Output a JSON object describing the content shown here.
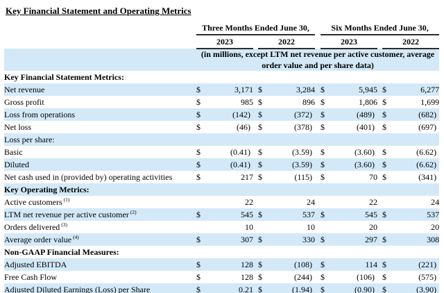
{
  "title": "Key Financial Statement and Operating Metrics",
  "currency_symbol": "$",
  "colors": {
    "row_highlight": "#d3e9f8",
    "header_rule": "#2b2b2b"
  },
  "table": {
    "period_groups": [
      {
        "label": "Three Months Ended June 30,",
        "years": [
          "2023",
          "2022"
        ]
      },
      {
        "label": "Six Months Ended June 30,",
        "years": [
          "2023",
          "2022"
        ]
      }
    ],
    "note": "(in millions, except LTM net revenue per active customer, average order value and per share data)",
    "rows": [
      {
        "type": "section",
        "label": "Key Financial Statement Metrics:",
        "shade": false
      },
      {
        "type": "data",
        "label": "Net revenue",
        "indent": 1,
        "dollar": true,
        "shade": true,
        "values": [
          "3,171",
          "3,284",
          "5,945",
          "6,277"
        ]
      },
      {
        "type": "data",
        "label": "Gross profit",
        "indent": 1,
        "dollar": true,
        "shade": false,
        "values": [
          "985",
          "896",
          "1,806",
          "1,699"
        ]
      },
      {
        "type": "data",
        "label": "Loss from operations",
        "indent": 1,
        "dollar": true,
        "shade": true,
        "values": [
          "(142)",
          "(372)",
          "(489)",
          "(682)"
        ]
      },
      {
        "type": "data",
        "label": "Net loss",
        "indent": 1,
        "dollar": true,
        "shade": false,
        "values": [
          "(46)",
          "(378)",
          "(401)",
          "(697)"
        ]
      },
      {
        "type": "plain",
        "label": "Loss per share:",
        "shade": true
      },
      {
        "type": "data",
        "label": "Basic",
        "indent": 2,
        "dollar": true,
        "shade": false,
        "values": [
          "(0.41)",
          "(3.59)",
          "(3.60)",
          "(6.62)"
        ]
      },
      {
        "type": "data",
        "label": "Diluted",
        "indent": 2,
        "dollar": true,
        "shade": true,
        "values": [
          "(0.41)",
          "(3.59)",
          "(3.60)",
          "(6.62)"
        ]
      },
      {
        "type": "data",
        "label": "Net cash used in (provided by) operating activities",
        "indent": 0,
        "dollar": true,
        "shade": false,
        "values": [
          "217",
          "(115)",
          "70",
          "(341)"
        ]
      },
      {
        "type": "section",
        "label": "Key Operating Metrics:",
        "shade": true
      },
      {
        "type": "data",
        "label": "Active customers",
        "footnote": "(1)",
        "indent": 1,
        "dollar": false,
        "shade": false,
        "values": [
          "22",
          "24",
          "22",
          "24"
        ]
      },
      {
        "type": "data",
        "label": "LTM net revenue per active customer",
        "footnote": "(2)",
        "indent": 1,
        "dollar": true,
        "shade": true,
        "values": [
          "545",
          "537",
          "545",
          "537"
        ]
      },
      {
        "type": "data",
        "label": "Orders delivered",
        "footnote": "(3)",
        "indent": 1,
        "dollar": false,
        "shade": false,
        "values": [
          "10",
          "10",
          "20",
          "20"
        ]
      },
      {
        "type": "data",
        "label": "Average order value",
        "footnote": "(4)",
        "indent": 1,
        "dollar": true,
        "shade": true,
        "values": [
          "307",
          "330",
          "297",
          "308"
        ]
      },
      {
        "type": "section",
        "label": "Non-GAAP Financial Measures:",
        "shade": false
      },
      {
        "type": "data",
        "label": "Adjusted EBITDA",
        "indent": 1,
        "dollar": true,
        "shade": true,
        "values": [
          "128",
          "(108)",
          "114",
          "(221)"
        ]
      },
      {
        "type": "data",
        "label": "Free Cash Flow",
        "indent": 1,
        "dollar": true,
        "shade": false,
        "values": [
          "128",
          "(244)",
          "(106)",
          "(575)"
        ]
      },
      {
        "type": "data",
        "label": "Adjusted Diluted Earnings (Loss) per Share",
        "indent": 1,
        "dollar": true,
        "shade": true,
        "values": [
          "0.21",
          "(1.94)",
          "(0.90)",
          "(3.90)"
        ]
      }
    ]
  }
}
